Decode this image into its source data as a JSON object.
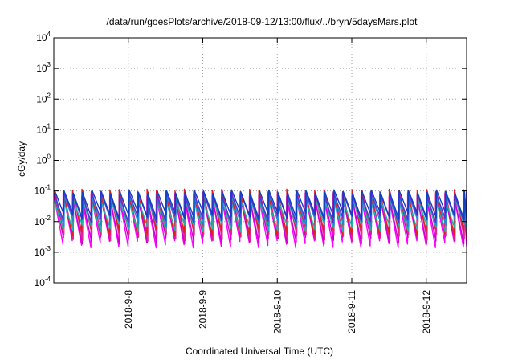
{
  "chart_data": {
    "type": "line",
    "title": "/data/run/goesPlots/archive/2018-09-12/13:00/flux/../bryn/5daysMars.plot",
    "xlabel": "Coordinated Universal Time (UTC)",
    "ylabel": "cGy/day",
    "y_scale": "log",
    "ylim": [
      0.0001,
      10000
    ],
    "y_ticks": [
      {
        "base": "10",
        "exp": "-4",
        "value": 0.0001
      },
      {
        "base": "10",
        "exp": "-3",
        "value": 0.001
      },
      {
        "base": "10",
        "exp": "-2",
        "value": 0.01
      },
      {
        "base": "10",
        "exp": "-1",
        "value": 0.1
      },
      {
        "base": "10",
        "exp": "0",
        "value": 1
      },
      {
        "base": "10",
        "exp": "1",
        "value": 10
      },
      {
        "base": "10",
        "exp": "2",
        "value": 100
      },
      {
        "base": "10",
        "exp": "3",
        "value": 1000
      },
      {
        "base": "10",
        "exp": "4",
        "value": 10000
      }
    ],
    "xlim": [
      "2018-09-07 00:00",
      "2018-09-12 13:00"
    ],
    "x_ticks": [
      "2018-9-8",
      "2018-9-9",
      "2018-9-10",
      "2018-9-11",
      "2018-9-12"
    ],
    "grid": true,
    "cycle_hours": 3,
    "series": [
      {
        "color": "#ff00ff",
        "peak": 0.075,
        "trough": 0.0018
      },
      {
        "color": "#cc00cc",
        "peak": 0.065,
        "trough": 0.0024
      },
      {
        "color": "#dd2a8a",
        "peak": 0.09,
        "trough": 0.003
      },
      {
        "color": "#e0201c",
        "peak": 0.1,
        "trough": 0.0045
      },
      {
        "color": "#20b2aa",
        "peak": 0.05,
        "trough": 0.006
      },
      {
        "color": "#1e8ad6",
        "peak": 0.07,
        "trough": 0.009
      },
      {
        "color": "#5a2fd6",
        "peak": 0.085,
        "trough": 0.012
      },
      {
        "color": "#1040c0",
        "peak": 0.095,
        "trough": 0.015
      }
    ]
  }
}
